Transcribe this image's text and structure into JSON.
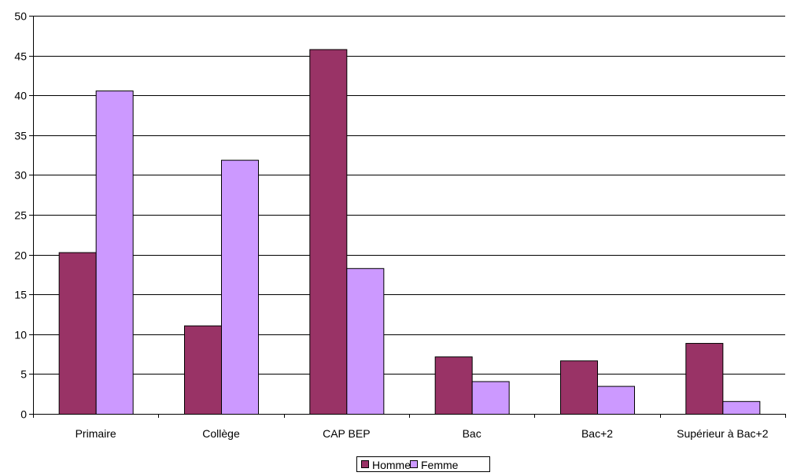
{
  "chart_data": {
    "type": "bar",
    "title": "",
    "xlabel": "",
    "ylabel": "",
    "categories": [
      "Primaire",
      "Collège",
      "CAP BEP",
      "Bac",
      "Bac+2",
      "Supérieur à Bac+2"
    ],
    "series": [
      {
        "name": "Homme",
        "values": [
          20.3,
          11.1,
          45.8,
          7.2,
          6.7,
          8.9
        ]
      },
      {
        "name": "Femme",
        "values": [
          40.6,
          31.9,
          18.3,
          4.1,
          3.5,
          1.6
        ]
      }
    ],
    "ylim": [
      0,
      50
    ],
    "yticks": [
      0,
      5,
      10,
      15,
      20,
      25,
      30,
      35,
      40,
      45,
      50
    ],
    "grid": true,
    "legend_position": "bottom-center",
    "colors": {
      "Homme": "#993366",
      "Femme": "#CC99FF"
    }
  }
}
